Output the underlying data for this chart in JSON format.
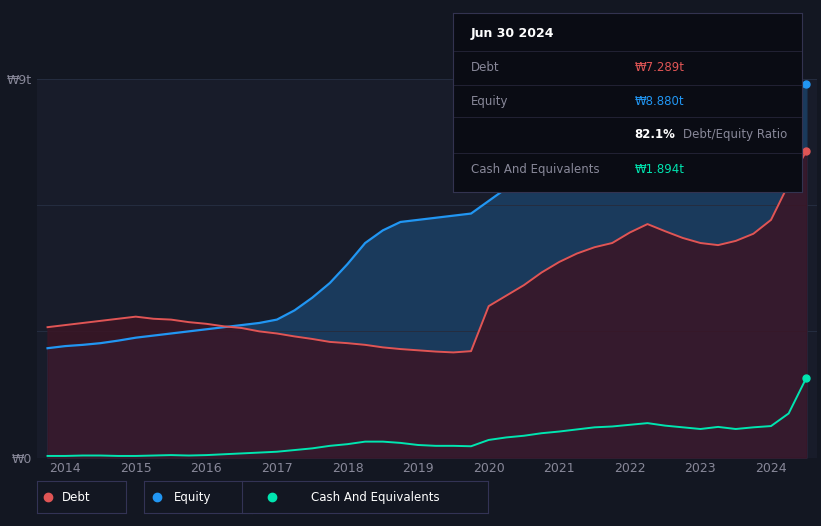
{
  "bg_color": "#131722",
  "plot_bg_color": "#181c2a",
  "debt_color": "#e05555",
  "equity_color": "#2196f3",
  "cash_color": "#00e5b0",
  "equity_fill_color": "#1a3a5c",
  "debt_fill_color": "#3a1525",
  "overlap_fill_color": "#2a2040",
  "tooltip": {
    "date": "Jun 30 2024",
    "debt_label": "Debt",
    "debt_value": "₩7.289t",
    "equity_label": "Equity",
    "equity_value": "₩8.880t",
    "ratio_pct": "82.1%",
    "ratio_label": "Debt/Equity Ratio",
    "cash_label": "Cash And Equivalents",
    "cash_value": "₩1.894t"
  },
  "legend": [
    {
      "label": "Debt",
      "color": "#e05555"
    },
    {
      "label": "Equity",
      "color": "#2196f3"
    },
    {
      "label": "Cash And Equivalents",
      "color": "#00e5b0"
    }
  ],
  "y_max": 9.0,
  "y_min": 0.0,
  "x": [
    2013.75,
    2014.0,
    2014.25,
    2014.5,
    2014.75,
    2015.0,
    2015.25,
    2015.5,
    2015.75,
    2016.0,
    2016.25,
    2016.5,
    2016.75,
    2017.0,
    2017.25,
    2017.5,
    2017.75,
    2018.0,
    2018.25,
    2018.5,
    2018.75,
    2019.0,
    2019.25,
    2019.5,
    2019.75,
    2020.0,
    2020.25,
    2020.5,
    2020.75,
    2021.0,
    2021.25,
    2021.5,
    2021.75,
    2022.0,
    2022.25,
    2022.5,
    2022.75,
    2023.0,
    2023.25,
    2023.5,
    2023.75,
    2024.0,
    2024.25,
    2024.5
  ],
  "debt": [
    3.1,
    3.15,
    3.2,
    3.25,
    3.3,
    3.35,
    3.3,
    3.28,
    3.22,
    3.18,
    3.12,
    3.08,
    3.0,
    2.95,
    2.88,
    2.82,
    2.75,
    2.72,
    2.68,
    2.62,
    2.58,
    2.55,
    2.52,
    2.5,
    2.53,
    3.6,
    3.85,
    4.1,
    4.4,
    4.65,
    4.85,
    5.0,
    5.1,
    5.35,
    5.55,
    5.38,
    5.22,
    5.1,
    5.05,
    5.15,
    5.32,
    5.65,
    6.5,
    7.289
  ],
  "equity": [
    2.6,
    2.65,
    2.68,
    2.72,
    2.78,
    2.85,
    2.9,
    2.95,
    3.0,
    3.05,
    3.1,
    3.15,
    3.2,
    3.28,
    3.5,
    3.8,
    4.15,
    4.6,
    5.1,
    5.4,
    5.6,
    5.65,
    5.7,
    5.75,
    5.8,
    6.1,
    6.4,
    6.6,
    6.9,
    7.2,
    7.4,
    7.55,
    7.65,
    7.85,
    8.0,
    7.75,
    7.62,
    7.52,
    7.6,
    7.85,
    8.05,
    8.25,
    8.55,
    8.88
  ],
  "cash": [
    0.04,
    0.04,
    0.05,
    0.05,
    0.04,
    0.04,
    0.05,
    0.06,
    0.05,
    0.06,
    0.08,
    0.1,
    0.12,
    0.14,
    0.18,
    0.22,
    0.28,
    0.32,
    0.38,
    0.38,
    0.35,
    0.3,
    0.28,
    0.28,
    0.27,
    0.42,
    0.48,
    0.52,
    0.58,
    0.62,
    0.67,
    0.72,
    0.74,
    0.78,
    0.82,
    0.76,
    0.72,
    0.68,
    0.73,
    0.68,
    0.72,
    0.75,
    1.05,
    1.894
  ],
  "x_ticks": [
    "2014",
    "2015",
    "2016",
    "2017",
    "2018",
    "2019",
    "2020",
    "2021",
    "2022",
    "2023",
    "2024"
  ],
  "x_tick_pos": [
    2014,
    2015,
    2016,
    2017,
    2018,
    2019,
    2020,
    2021,
    2022,
    2023,
    2024
  ],
  "y_ticks": [
    0,
    3,
    6,
    9
  ],
  "y_tick_labels": [
    "₩0",
    "",
    "",
    "₩9t"
  ]
}
